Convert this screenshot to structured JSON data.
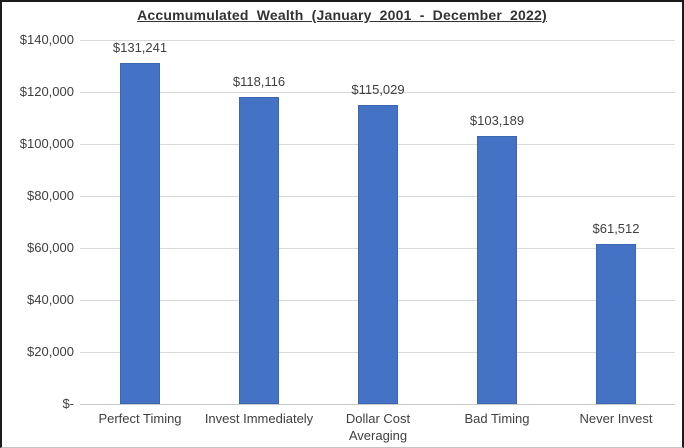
{
  "chart_data": {
    "type": "bar",
    "title": "Accumumulated Wealth (January 2001 - December 2022)",
    "categories": [
      "Perfect Timing",
      "Invest Immediately",
      "Dollar Cost Averaging",
      "Bad Timing",
      "Never Invest"
    ],
    "values": [
      131241,
      118116,
      115029,
      103189,
      61512
    ],
    "data_labels": [
      "$131,241",
      "$118,116",
      "$115,029",
      "$103,189",
      "$61,512"
    ],
    "yticks": [
      {
        "label": "$-",
        "value": 0
      },
      {
        "label": "$20,000",
        "value": 20000
      },
      {
        "label": "$40,000",
        "value": 40000
      },
      {
        "label": "$60,000",
        "value": 60000
      },
      {
        "label": "$80,000",
        "value": 80000
      },
      {
        "label": "$100,000",
        "value": 100000
      },
      {
        "label": "$120,000",
        "value": 120000
      },
      {
        "label": "$140,000",
        "value": 140000
      }
    ],
    "ylim": [
      0,
      140000
    ],
    "xlabel": "",
    "ylabel": "",
    "grid": true,
    "legend_position": "none",
    "bar_color": "#4472C4",
    "gridline_color": "#D9D9D9",
    "text_color": "#404040"
  }
}
